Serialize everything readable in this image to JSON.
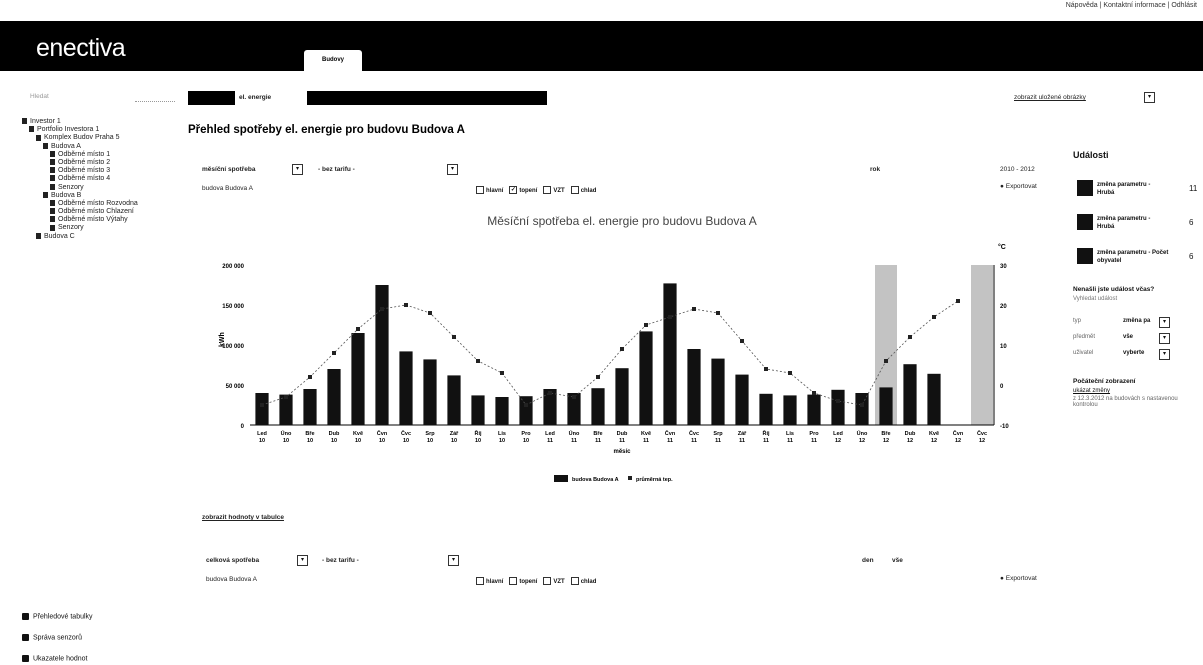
{
  "top_links": "Nápověda  |  Kontaktní informace  |  Odhlásit",
  "brand": {
    "logo": "enectiva"
  },
  "nav": {
    "active_tab": "Budovy"
  },
  "toolbar": {
    "left_label": "Budovy",
    "energy_label": "el. energie",
    "right_label": "zobrazit uložené obrázky"
  },
  "sidebar": {
    "filter_placeholder": "Hledat",
    "tree": [
      {
        "label": "Investor 1",
        "indent": 0
      },
      {
        "label": "Portfolio Investora 1",
        "indent": 1
      },
      {
        "label": "Komplex Budov Praha 5",
        "indent": 2
      },
      {
        "label": "Budova A",
        "indent": 3
      },
      {
        "label": "Odběrné místo 1",
        "indent": 4
      },
      {
        "label": "Odběrné místo 2",
        "indent": 4
      },
      {
        "label": "Odběrné místo 3",
        "indent": 4
      },
      {
        "label": "Odběrné místo 4",
        "indent": 4
      },
      {
        "label": "Senzory",
        "indent": 4
      },
      {
        "label": "Budova B",
        "indent": 3
      },
      {
        "label": "Odběrné místo Rozvodna",
        "indent": 4
      },
      {
        "label": "Odběrné místo Chlazení",
        "indent": 4
      },
      {
        "label": "Odběrné místo Výtahy",
        "indent": 4
      },
      {
        "label": "Senzory",
        "indent": 4
      },
      {
        "label": "Budova C",
        "indent": 2
      }
    ]
  },
  "page_title": "Přehled spotřeby el. energie pro budovu Budova A",
  "controls": {
    "mode": "měsíční spotřeba",
    "tariff": "- bez tarifu -",
    "period": "rok",
    "year_range": "2010 - 2012",
    "object": "budova Budova A",
    "checkboxes": [
      {
        "label": "hlavní",
        "checked": false
      },
      {
        "label": "topení",
        "checked": true
      },
      {
        "label": "VZT",
        "checked": false
      },
      {
        "label": "chlad",
        "checked": false
      }
    ],
    "export_label": "Exportovat"
  },
  "chart_data": {
    "type": "bar",
    "title": "Měsíční spotřeba el. energie pro budovu Budova A",
    "xlabel": "měsíc",
    "ylabel": "kWh",
    "ylabel_right": "°C",
    "ylim": [
      0,
      200000
    ],
    "ylim_right": [
      -10,
      30
    ],
    "yticks": [
      "0",
      "50 000",
      "100 000",
      "150 000",
      "200 000"
    ],
    "yticks_right": [
      "-10",
      "0",
      "10",
      "20",
      "30"
    ],
    "categories": [
      "Led 10",
      "Úno 10",
      "Bře 10",
      "Dub 10",
      "Kvě 10",
      "Čvn 10",
      "Čvc 10",
      "Srp 10",
      "Zář 10",
      "Říj 10",
      "Lis 10",
      "Pro 10",
      "Led 11",
      "Úno 11",
      "Bře 11",
      "Dub 11",
      "Kvě 11",
      "Čvn 11",
      "Čvc 11",
      "Srp 11",
      "Zář 11",
      "Říj 11",
      "Lis 11",
      "Pro 11",
      "Led 12",
      "Úno 12",
      "Bře 12",
      "Dub 12",
      "Kvě 12",
      "Čvn 12",
      "Čvc 12"
    ],
    "series": [
      {
        "name": "budova Budova A",
        "type": "bar",
        "values": [
          40000,
          38000,
          45000,
          70000,
          115000,
          175000,
          92000,
          82000,
          62000,
          37000,
          35000,
          36000,
          45000,
          40000,
          46000,
          71000,
          117000,
          177000,
          95000,
          83000,
          63000,
          39000,
          37000,
          38000,
          44000,
          40000,
          47000,
          76000,
          64000,
          0,
          0
        ]
      },
      {
        "name": "průměrná tep.",
        "type": "line",
        "values": [
          -5,
          -3,
          2,
          8,
          14,
          19,
          20,
          18,
          12,
          6,
          3,
          -5,
          -2,
          -3,
          2,
          9,
          15,
          17,
          19,
          18,
          11,
          4,
          3,
          -2,
          -4,
          -5,
          6,
          12,
          17,
          21,
          null
        ]
      }
    ],
    "highlighted_columns": [
      "Bře 12",
      "Čvc 12"
    ],
    "legend": [
      "budova Budova A",
      "průměrná tep."
    ],
    "legend_position": "bottom"
  },
  "table_link": "zobrazit hodnoty v tabulce",
  "controls2": {
    "mode": "celková spotřeba",
    "tariff": "- bez tarifu -",
    "period": "den",
    "date": "vše",
    "object": "budova Budova A",
    "checkboxes": [
      {
        "label": "hlavní",
        "checked": false
      },
      {
        "label": "topení",
        "checked": false
      },
      {
        "label": "VZT",
        "checked": false
      },
      {
        "label": "chlad",
        "checked": false
      }
    ],
    "export_label": "Exportovat"
  },
  "events": {
    "title": "Události",
    "items": [
      {
        "label": "změna parametru - Hrubá",
        "count": "11"
      },
      {
        "label": "změna parametru - Hrubá",
        "count": "6"
      },
      {
        "label": "změna parametru - Počet obyvatel",
        "count": "6"
      }
    ],
    "find_title": "Nenašli jste událost včas?",
    "find_sub": "Vyhledat událost",
    "filters": [
      {
        "label": "typ",
        "value": "změna pa"
      },
      {
        "label": "předmět",
        "value": "vše"
      },
      {
        "label": "uživatel",
        "value": "vyberte"
      }
    ],
    "settings_title": "Počáteční zobrazení",
    "settings_link": "ukázat změny",
    "settings_note": "z 12.3.2012 na budovách s nastavenou kontrolou"
  },
  "bottom_nav": [
    {
      "label": "Přehledové tabulky",
      "icon": "table-icon"
    },
    {
      "label": "Správa senzorů",
      "icon": "sensor-icon"
    },
    {
      "label": "Ukazatele hodnot",
      "icon": "gauge-icon"
    }
  ]
}
